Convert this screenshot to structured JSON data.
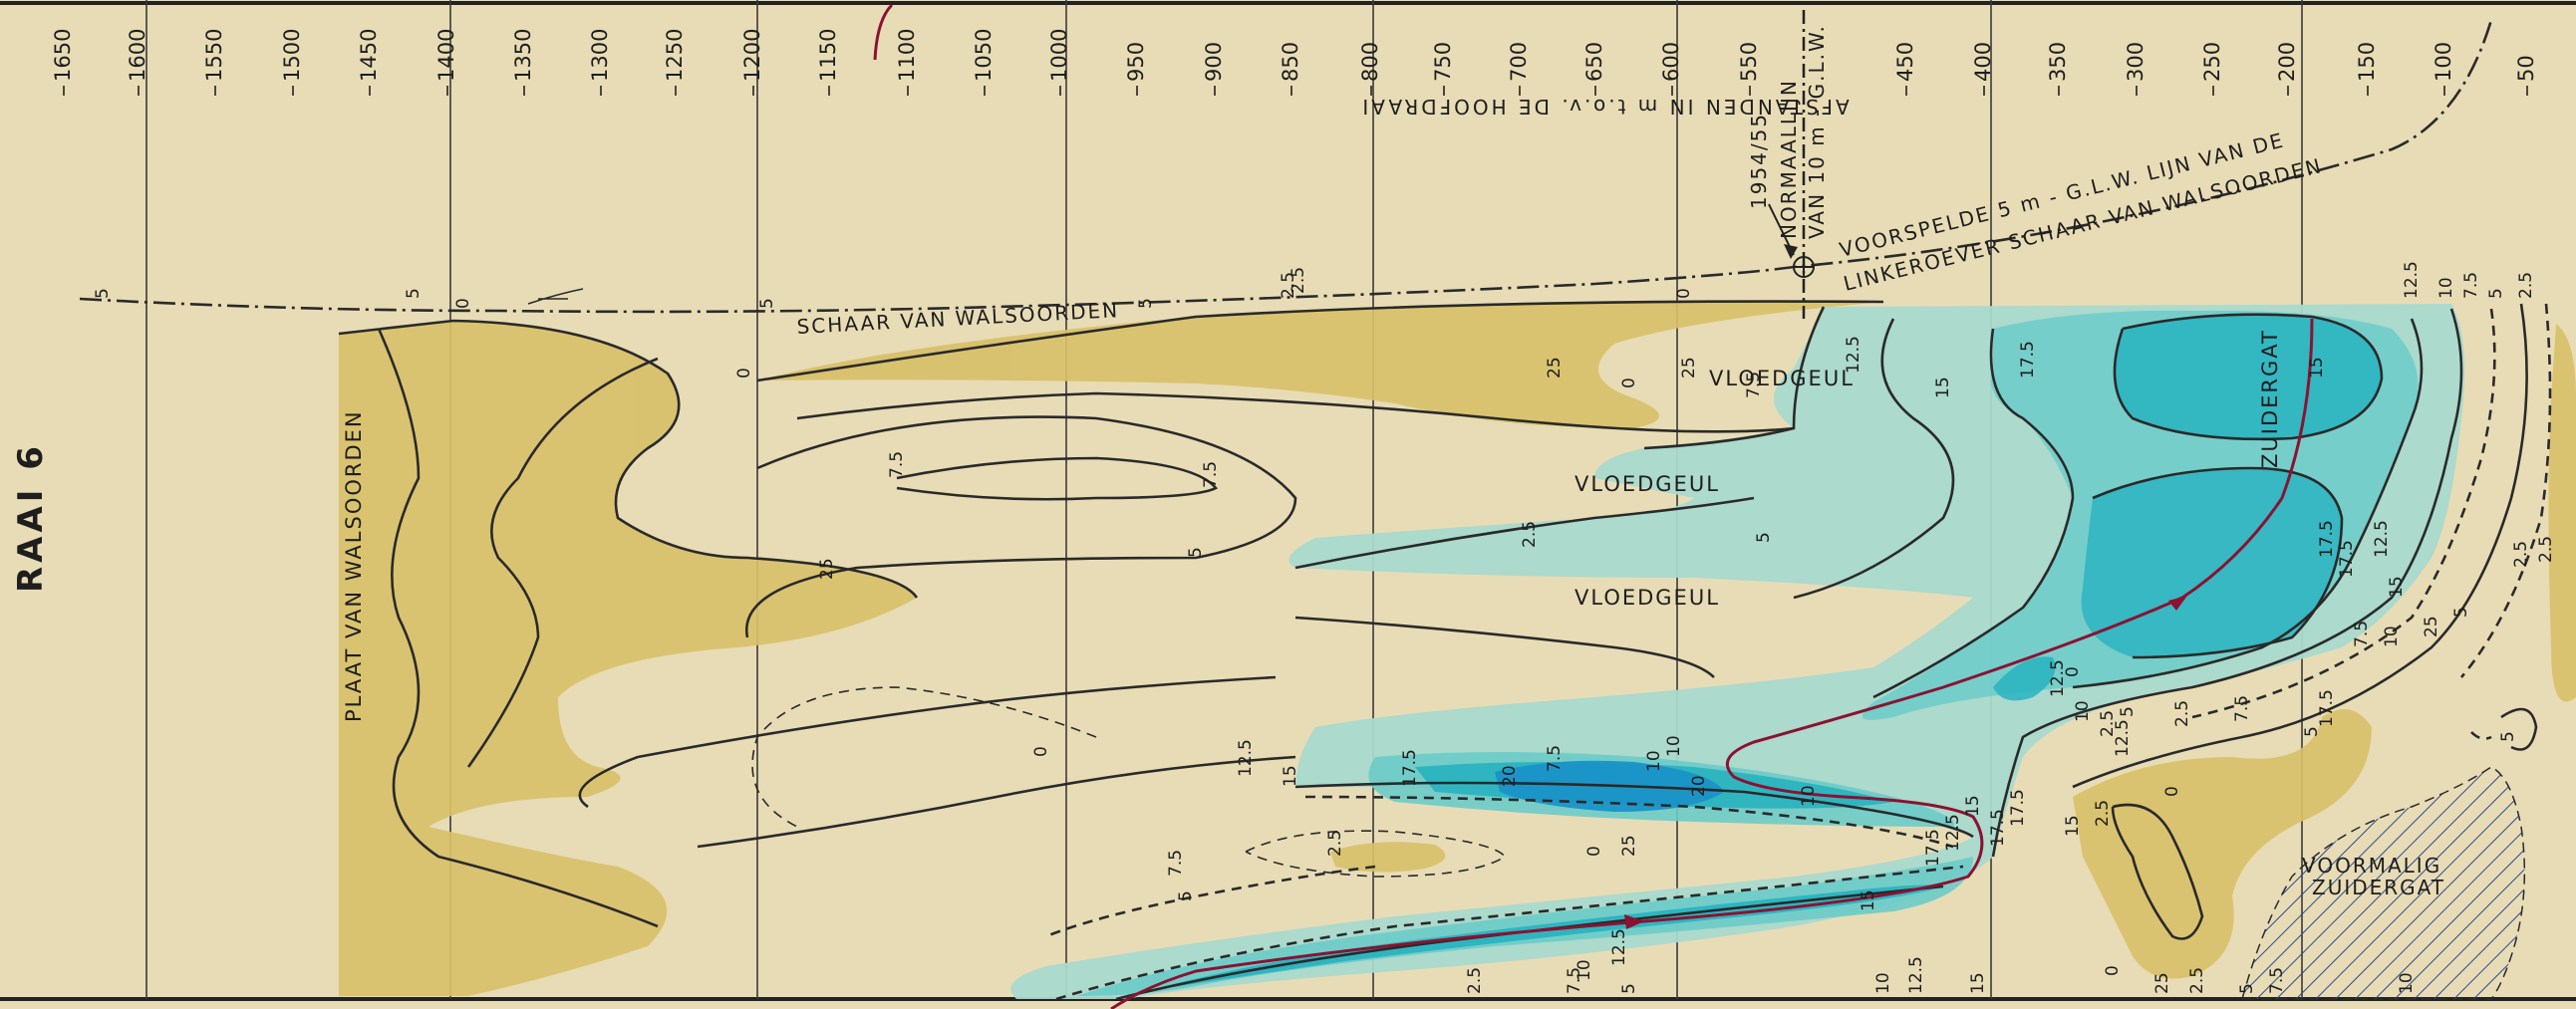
{
  "section_title": "RAAI 6",
  "axis_title": "AFSTANDEN IN m t.o.v. DE HOOFDRAAI",
  "distance_ticks": [
    "1650",
    "1600",
    "1550",
    "1500",
    "1450",
    "1400",
    "1350",
    "1300",
    "1250",
    "1200",
    "1150",
    "1100",
    "1050",
    "1000",
    "950",
    "900",
    "850",
    "800",
    "750",
    "700",
    "650",
    "600",
    "550",
    "450",
    "400",
    "350",
    "300",
    "250",
    "200",
    "150",
    "100",
    "50"
  ],
  "top_labels": {
    "year": "1954/55",
    "normaallijn": "NORMAALLIJN",
    "normaallijn_sub": "VAN 10 m - G.L.W.",
    "voorspelde_1": "VOORSPELDE 5 m - G.L.W. LIJN VAN DE",
    "voorspelde_2": "LINKEROEVER SCHAAR VAN WALSOORDEN",
    "schaar": "SCHAAR VAN WALSOORDEN"
  },
  "place_labels": {
    "plaat": "PLAAT VAN WALSOORDEN",
    "vloedgeul_1": "VLOEDGEUL",
    "vloedgeul_2": "VLOEDGEUL",
    "vloedgeul_3": "VLOEDGEUL",
    "zuidergat": "ZUIDERGAT",
    "voormalig_1": "VOORMALIG",
    "voormalig_2": "ZUIDERGAT"
  },
  "depth_labels": [
    "5",
    "0",
    "5",
    "5",
    "5",
    "2.5",
    "2.5",
    "0",
    "25",
    "0",
    "25",
    "0",
    "25",
    "7.5",
    "7.5",
    "5",
    "2.5",
    "5",
    "7.5",
    "10",
    "12.5",
    "15",
    "17.5",
    "20",
    "20",
    "15",
    "17.5",
    "12.5",
    "10",
    "7.5",
    "5",
    "2.5",
    "0",
    "25",
    "0",
    "7.5",
    "10",
    "12.5",
    "15",
    "17.5",
    "17.5",
    "15",
    "12.5",
    "10",
    "7.5",
    "5",
    "2.5",
    "10",
    "12.5",
    "15",
    "17.5",
    "15",
    "12.5",
    "2.5",
    "7.5",
    "5",
    "2.5",
    "0",
    "0",
    "25",
    "2.5",
    "5",
    "7.5",
    "10",
    "12.5",
    "15",
    "17.5",
    "17.5",
    "15",
    "12.5",
    "10",
    "7.5",
    "5",
    "2.5",
    "2.5",
    "5",
    "25",
    "10",
    "7.5",
    "5",
    "2.5",
    "0",
    "12.5",
    "10",
    "17.5",
    "2.5",
    "5"
  ],
  "colors": {
    "background": "#e8dcb6",
    "shoal": "#d8c06a",
    "shallow_channel": "#a9d9cd",
    "mid_channel": "#6ccbc9",
    "deep_channel": "#28b3bf",
    "deepest": "#1a93c8",
    "flow_arrow": "#8b1232",
    "contour": "#2a2a2a"
  }
}
